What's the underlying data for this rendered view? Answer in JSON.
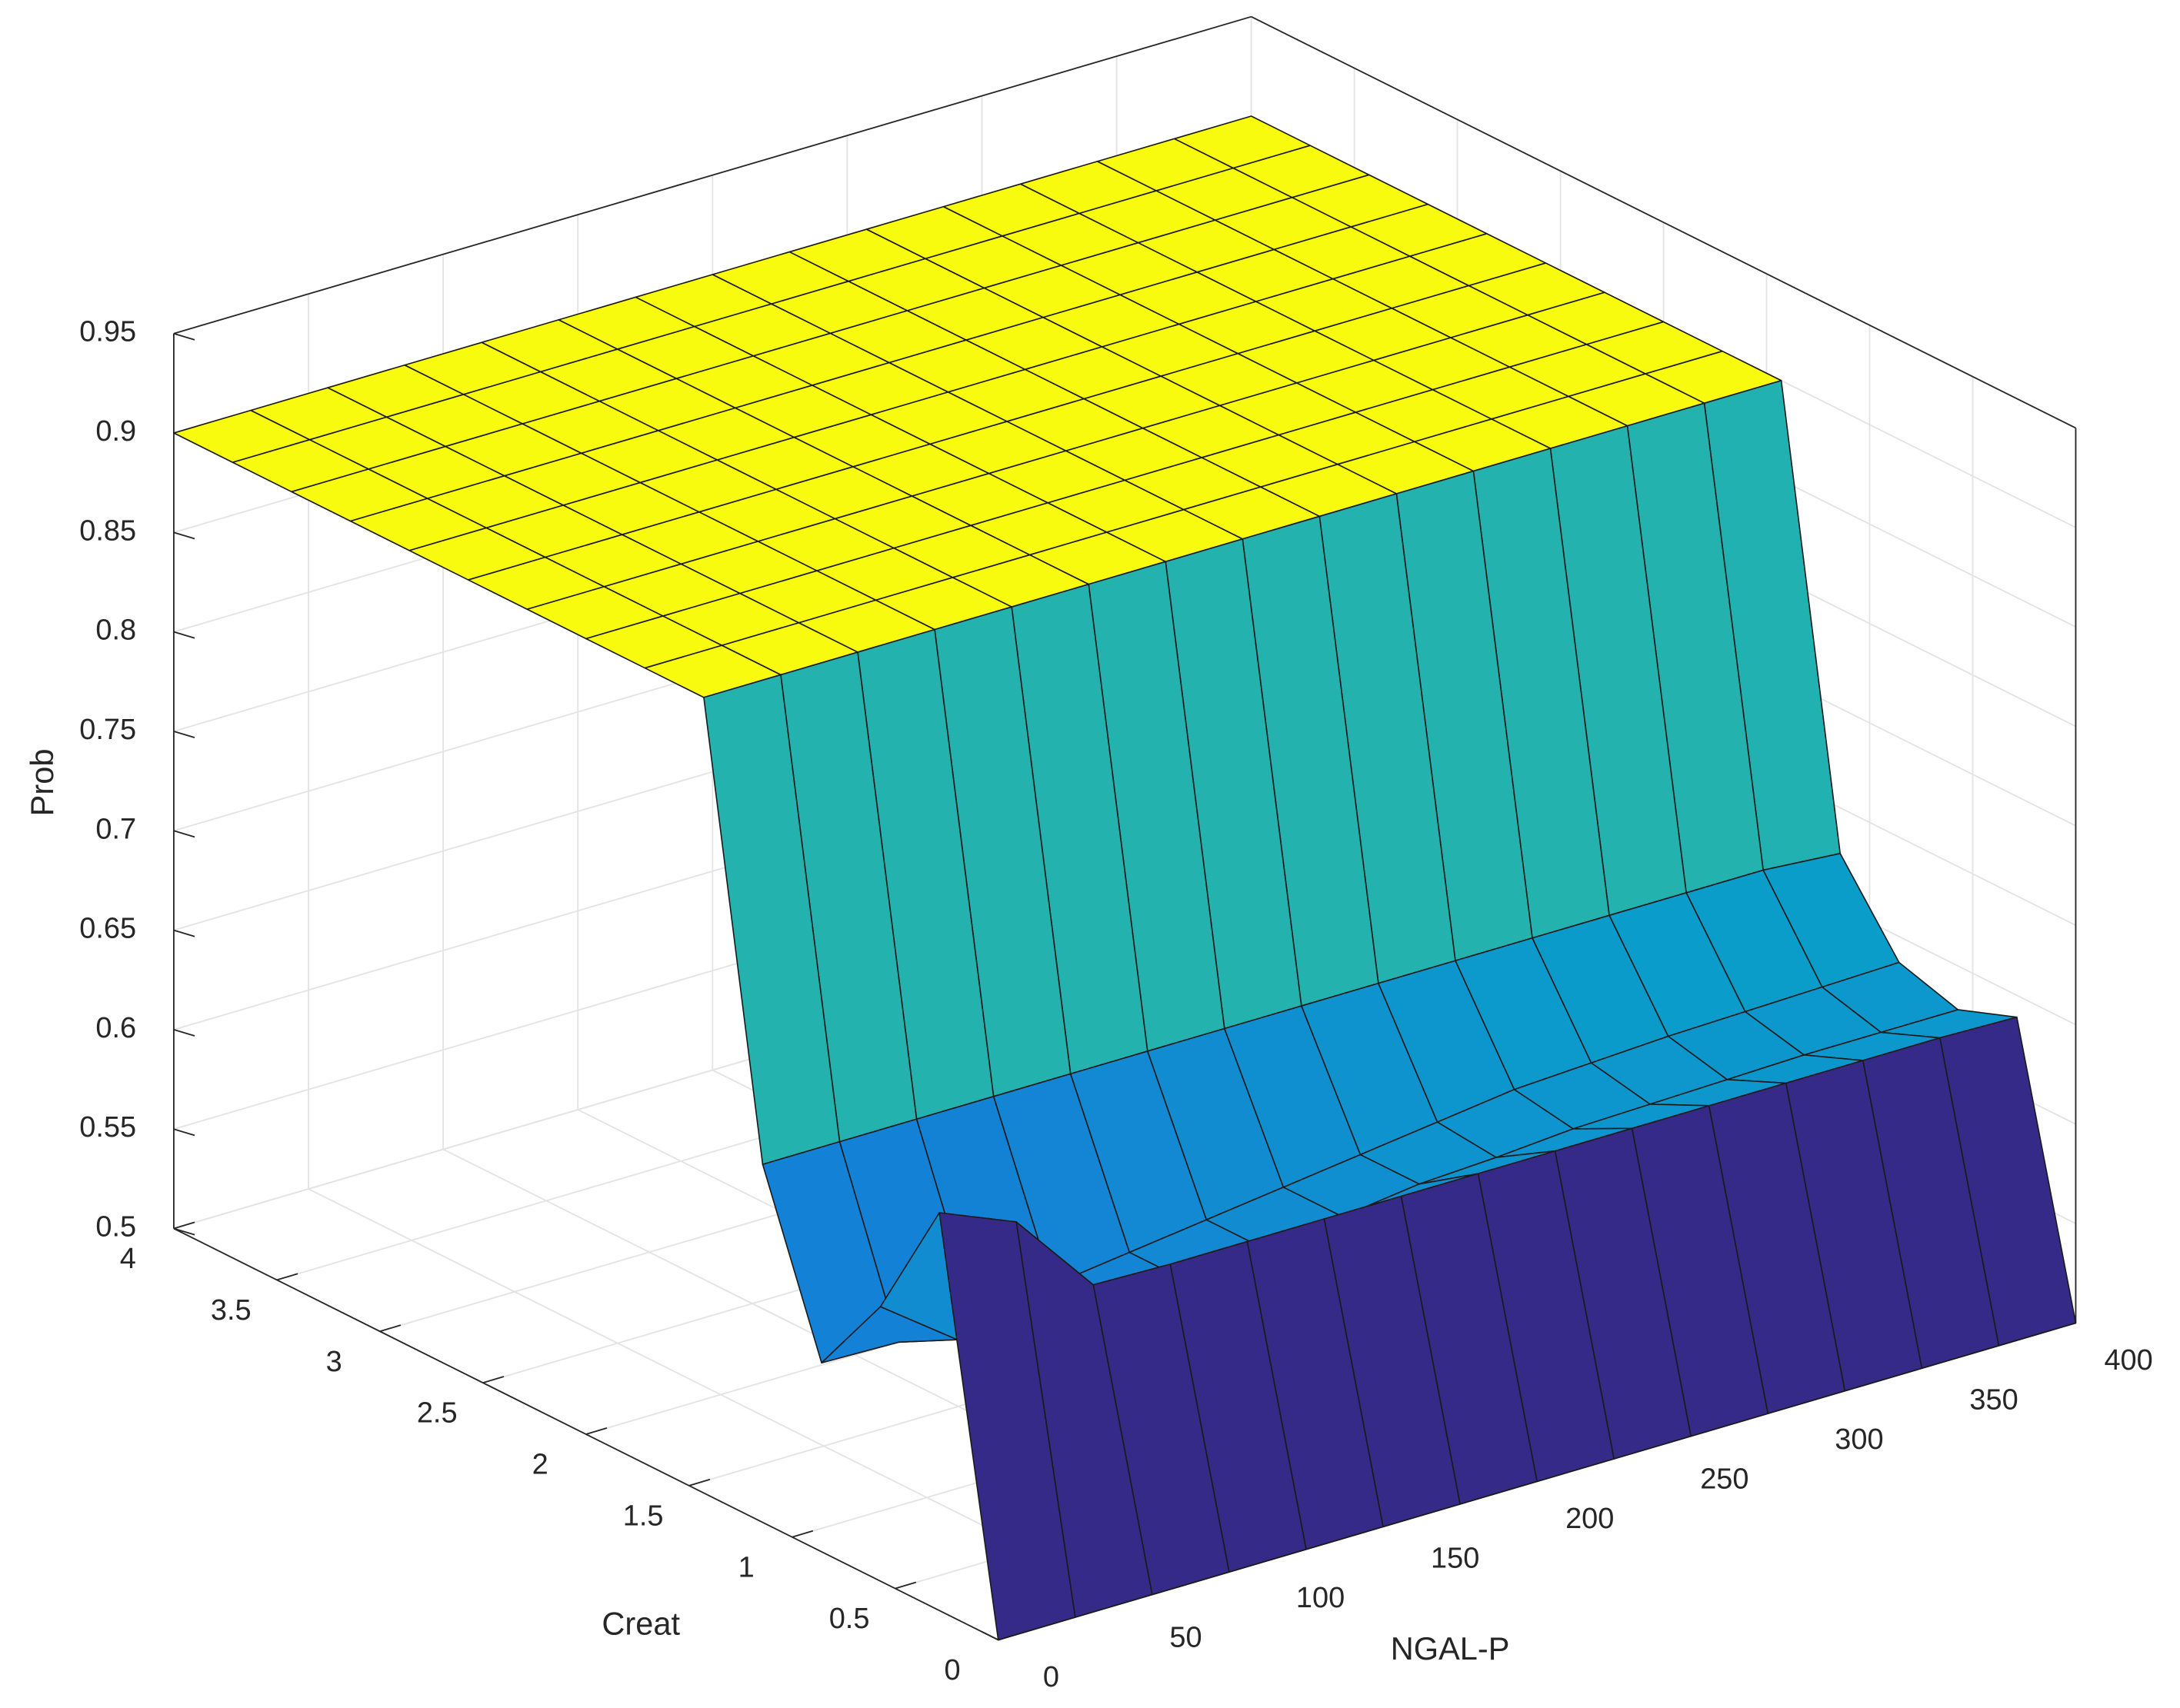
{
  "chart_data": {
    "type": "surface",
    "xlabel": "NGAL-P",
    "ylabel": "Creat",
    "zlabel": "Prob",
    "x": [
      0,
      28.57,
      57.14,
      85.71,
      114.29,
      142.86,
      171.43,
      200,
      228.57,
      257.14,
      285.71,
      314.29,
      342.86,
      371.43,
      400
    ],
    "y": [
      0,
      0.2857,
      0.5714,
      0.8571,
      1.1429,
      1.4286,
      1.7143,
      2,
      2.2857,
      2.5714,
      2.8571,
      3.1429,
      3.4286,
      3.7143,
      4
    ],
    "z": [
      [
        0.5,
        0.5,
        0.5,
        0.5,
        0.5,
        0.5,
        0.5,
        0.5,
        0.5,
        0.5,
        0.5,
        0.5,
        0.5,
        0.5,
        0.5
      ],
      [
        0.7,
        0.684,
        0.641,
        0.64,
        0.64,
        0.64,
        0.64,
        0.64,
        0.64,
        0.64,
        0.64,
        0.64,
        0.64,
        0.64,
        0.639
      ],
      [
        0.638,
        0.61,
        0.6,
        0.6,
        0.605,
        0.61,
        0.615,
        0.62,
        0.622,
        0.625,
        0.626,
        0.627,
        0.628,
        0.628,
        0.628
      ],
      [
        0.595,
        0.594,
        0.596,
        0.6,
        0.605,
        0.61,
        0.615,
        0.62,
        0.625,
        0.63,
        0.632,
        0.634,
        0.635,
        0.636,
        0.637
      ],
      [
        0.68,
        0.68,
        0.68,
        0.68,
        0.68,
        0.68,
        0.68,
        0.68,
        0.68,
        0.68,
        0.68,
        0.68,
        0.68,
        0.68,
        0.677
      ],
      [
        0.9,
        0.9,
        0.9,
        0.9,
        0.9,
        0.9,
        0.9,
        0.9,
        0.9,
        0.9,
        0.9,
        0.9,
        0.9,
        0.9,
        0.9
      ],
      [
        0.9,
        0.9,
        0.9,
        0.9,
        0.9,
        0.9,
        0.9,
        0.9,
        0.9,
        0.9,
        0.9,
        0.9,
        0.9,
        0.9,
        0.9
      ],
      [
        0.9,
        0.9,
        0.9,
        0.9,
        0.9,
        0.9,
        0.9,
        0.9,
        0.9,
        0.9,
        0.9,
        0.9,
        0.9,
        0.9,
        0.9
      ],
      [
        0.9,
        0.9,
        0.9,
        0.9,
        0.9,
        0.9,
        0.9,
        0.9,
        0.9,
        0.9,
        0.9,
        0.9,
        0.9,
        0.9,
        0.9
      ],
      [
        0.9,
        0.9,
        0.9,
        0.9,
        0.9,
        0.9,
        0.9,
        0.9,
        0.9,
        0.9,
        0.9,
        0.9,
        0.9,
        0.9,
        0.9
      ],
      [
        0.9,
        0.9,
        0.9,
        0.9,
        0.9,
        0.9,
        0.9,
        0.9,
        0.9,
        0.9,
        0.9,
        0.9,
        0.9,
        0.9,
        0.9
      ],
      [
        0.9,
        0.9,
        0.9,
        0.9,
        0.9,
        0.9,
        0.9,
        0.9,
        0.9,
        0.9,
        0.9,
        0.9,
        0.9,
        0.9,
        0.9
      ],
      [
        0.9,
        0.9,
        0.9,
        0.9,
        0.9,
        0.9,
        0.9,
        0.9,
        0.9,
        0.9,
        0.9,
        0.9,
        0.9,
        0.9,
        0.9
      ],
      [
        0.9,
        0.9,
        0.9,
        0.9,
        0.9,
        0.9,
        0.9,
        0.9,
        0.9,
        0.9,
        0.9,
        0.9,
        0.9,
        0.9,
        0.9
      ],
      [
        0.9,
        0.9,
        0.9,
        0.9,
        0.9,
        0.9,
        0.9,
        0.9,
        0.9,
        0.9,
        0.9,
        0.9,
        0.9,
        0.9,
        0.9
      ]
    ],
    "xlim": [
      0,
      400
    ],
    "xticks": [
      0,
      50,
      100,
      150,
      200,
      250,
      300,
      350,
      400
    ],
    "ylim": [
      0,
      4
    ],
    "yticks": [
      0,
      0.5,
      1,
      1.5,
      2,
      2.5,
      3,
      3.5,
      4
    ],
    "zlim": [
      0.5,
      0.95
    ],
    "zticks": [
      0.5,
      0.55,
      0.6,
      0.65,
      0.7,
      0.75,
      0.8,
      0.85,
      0.9,
      0.95
    ],
    "grid": true,
    "colormap": [
      "#352a87",
      "#0363e1",
      "#1485d4",
      "#06a7c6",
      "#38b99e",
      "#92bf73",
      "#d9ba56",
      "#fcce2e",
      "#f9fb0e"
    ]
  }
}
